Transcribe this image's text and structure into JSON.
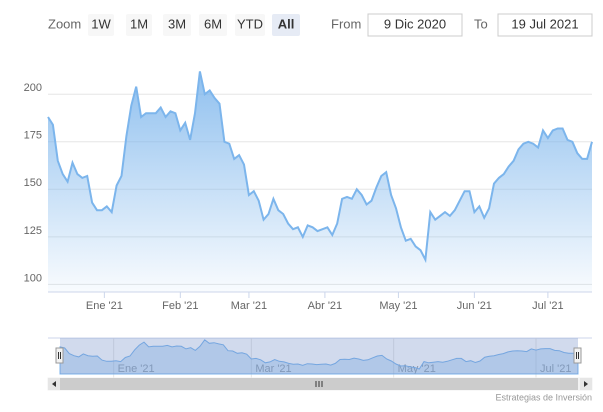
{
  "chart_data": {
    "type": "area",
    "zoom_label": "Zoom",
    "buttons": [
      "1W",
      "1M",
      "3M",
      "6M",
      "YTD",
      "All"
    ],
    "selected_button": "All",
    "from_label": "From",
    "from_value": "9 Dic 2020",
    "to_label": "To",
    "to_value": "19 Jul 2021",
    "credit": "Estrategias de Inversión",
    "x": [
      "2020-12-09",
      "2020-12-11",
      "2020-12-13",
      "2020-12-15",
      "2020-12-17",
      "2020-12-19",
      "2020-12-21",
      "2020-12-23",
      "2020-12-25",
      "2020-12-27",
      "2020-12-29",
      "2020-12-31",
      "2021-01-02",
      "2021-01-04",
      "2021-01-06",
      "2021-01-08",
      "2021-01-10",
      "2021-01-12",
      "2021-01-14",
      "2021-01-16",
      "2021-01-18",
      "2021-01-20",
      "2021-01-22",
      "2021-01-24",
      "2021-01-26",
      "2021-01-28",
      "2021-01-30",
      "2021-02-01",
      "2021-02-03",
      "2021-02-05",
      "2021-02-07",
      "2021-02-09",
      "2021-02-11",
      "2021-02-13",
      "2021-02-15",
      "2021-02-17",
      "2021-02-19",
      "2021-02-21",
      "2021-02-23",
      "2021-02-25",
      "2021-02-27",
      "2021-03-01",
      "2021-03-03",
      "2021-03-05",
      "2021-03-07",
      "2021-03-09",
      "2021-03-11",
      "2021-03-13",
      "2021-03-15",
      "2021-03-17",
      "2021-03-19",
      "2021-03-21",
      "2021-03-23",
      "2021-03-25",
      "2021-03-27",
      "2021-03-29",
      "2021-03-31",
      "2021-04-02",
      "2021-04-04",
      "2021-04-06",
      "2021-04-08",
      "2021-04-10",
      "2021-04-12",
      "2021-04-14",
      "2021-04-16",
      "2021-04-18",
      "2021-04-20",
      "2021-04-22",
      "2021-04-24",
      "2021-04-26",
      "2021-04-28",
      "2021-04-30",
      "2021-05-02",
      "2021-05-04",
      "2021-05-06",
      "2021-05-08",
      "2021-05-10",
      "2021-05-12",
      "2021-05-14",
      "2021-05-16",
      "2021-05-18",
      "2021-05-20",
      "2021-05-22",
      "2021-05-24",
      "2021-05-26",
      "2021-05-28",
      "2021-05-30",
      "2021-06-01",
      "2021-06-03",
      "2021-06-05",
      "2021-06-07",
      "2021-06-09",
      "2021-06-11",
      "2021-06-13",
      "2021-06-15",
      "2021-06-17",
      "2021-06-19",
      "2021-06-21",
      "2021-06-23",
      "2021-06-25",
      "2021-06-27",
      "2021-06-29",
      "2021-07-01",
      "2021-07-03",
      "2021-07-05",
      "2021-07-07",
      "2021-07-09",
      "2021-07-11",
      "2021-07-13",
      "2021-07-15",
      "2021-07-17",
      "2021-07-19"
    ],
    "series": [
      {
        "color": "#7cb5ec",
        "values": [
          188,
          184,
          165,
          158,
          154,
          164,
          158,
          156,
          157,
          143,
          139,
          139,
          141,
          138,
          152,
          157,
          178,
          194,
          204,
          188,
          190,
          190,
          190,
          193,
          188,
          191,
          190,
          181,
          185,
          176,
          190,
          212,
          200,
          202,
          198,
          195,
          175,
          174,
          166,
          168,
          163,
          147,
          149,
          144,
          134,
          137,
          145,
          139,
          137,
          132,
          129,
          130,
          125,
          131,
          130,
          128,
          129,
          130,
          126,
          132,
          145,
          146,
          145,
          150,
          147,
          142,
          144,
          151,
          157,
          159,
          147,
          140,
          130,
          123,
          124,
          120,
          118,
          113,
          138,
          134,
          136,
          138,
          136,
          139,
          144,
          149,
          149,
          138,
          141,
          135,
          140,
          153,
          156,
          158,
          162,
          165,
          171,
          174,
          175,
          174,
          172,
          181,
          177,
          181,
          182,
          182,
          176,
          175,
          169,
          166,
          166,
          175
        ]
      }
    ],
    "xlim": [
      "2020-12-09",
      "2021-07-19"
    ],
    "xticks": [
      {
        "value": "2021-01-01",
        "label": "Ene '21"
      },
      {
        "value": "2021-02-01",
        "label": "Feb '21"
      },
      {
        "value": "2021-03-01",
        "label": "Mar '21"
      },
      {
        "value": "2021-04-01",
        "label": "Abr '21"
      },
      {
        "value": "2021-05-01",
        "label": "May '21"
      },
      {
        "value": "2021-06-01",
        "label": "Jun '21"
      },
      {
        "value": "2021-07-01",
        "label": "Jul '21"
      }
    ],
    "navigator_xticks": [
      {
        "value": "2021-01-01",
        "label": "Ene '21"
      },
      {
        "value": "2021-03-01",
        "label": "Mar '21"
      },
      {
        "value": "2021-05-01",
        "label": "May '21"
      },
      {
        "value": "2021-07-01",
        "label": "Jul '21"
      }
    ],
    "ylim": [
      96,
      218
    ],
    "yticks": [
      100,
      125,
      150,
      175,
      200
    ],
    "grid": true
  }
}
